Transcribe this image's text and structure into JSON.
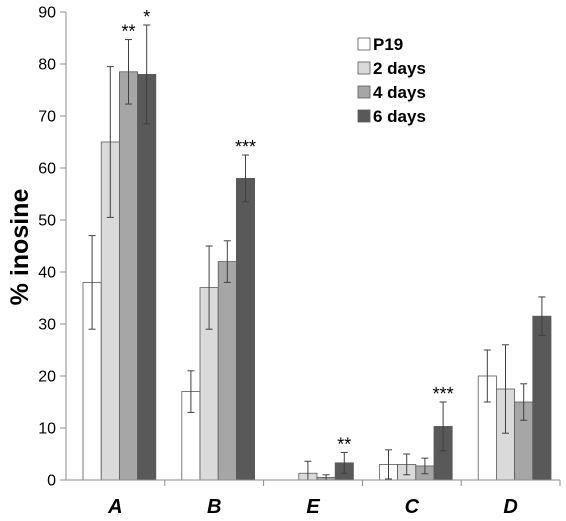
{
  "chart_data": {
    "type": "bar",
    "ylabel": "% inosine",
    "xlabel": "",
    "ylim": [
      0,
      90
    ],
    "yticks": [
      0,
      10,
      20,
      30,
      40,
      50,
      60,
      70,
      80,
      90
    ],
    "grid": false,
    "legend_position": "top-right",
    "categories": [
      "A",
      "B",
      "E",
      "C",
      "D"
    ],
    "series": [
      {
        "name": "P19",
        "color": "#ffffff",
        "values": [
          38,
          17,
          0,
          3,
          20
        ],
        "errors": [
          9,
          4,
          0,
          2.8,
          5
        ]
      },
      {
        "name": "2 days",
        "color": "#dadada",
        "values": [
          65,
          37,
          1.3,
          3,
          17.5
        ],
        "errors": [
          14.5,
          8,
          2.3,
          2,
          8.5
        ]
      },
      {
        "name": "4 days",
        "color": "#a6a6a6",
        "values": [
          78.5,
          42,
          0.5,
          2.7,
          15
        ],
        "errors": [
          6.2,
          4,
          0.5,
          1.5,
          3.5
        ]
      },
      {
        "name": "6 days",
        "color": "#595959",
        "values": [
          78,
          58,
          3.3,
          10.3,
          31.5
        ],
        "errors": [
          9.5,
          4.5,
          2,
          4.7,
          3.7
        ]
      }
    ],
    "annotations": [
      {
        "category": "A",
        "series": "4 days",
        "text": "**"
      },
      {
        "category": "A",
        "series": "6 days",
        "text": "*"
      },
      {
        "category": "B",
        "series": "6 days",
        "text": "***"
      },
      {
        "category": "E",
        "series": "6 days",
        "text": "**"
      },
      {
        "category": "C",
        "series": "6 days",
        "text": "***"
      }
    ]
  }
}
